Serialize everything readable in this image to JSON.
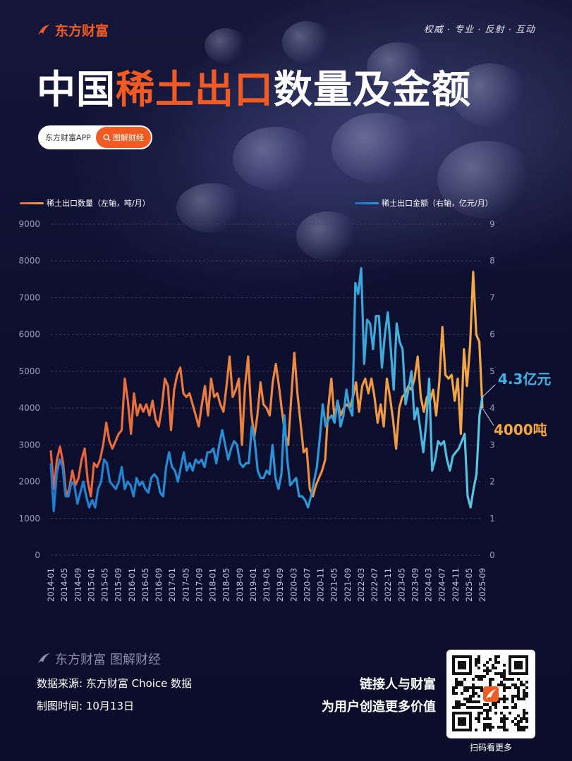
{
  "header": {
    "brand": "东方财富",
    "slogan": "权威 · 专业 · 反射 · 互动",
    "title_part1": "中国",
    "title_highlight": "稀土出口",
    "title_part2": "数量及金额",
    "app_label": "东方财富APP",
    "section_button": "图解财经"
  },
  "colors": {
    "accent": "#f15a22",
    "volume_line": "#f0a040",
    "amount_line": "#2a9ad8",
    "background": "#0c0e2c"
  },
  "chart_data": {
    "type": "line",
    "left_axis": {
      "label": "稀土出口数量（左轴，吨/月）",
      "ticks": [
        0,
        1000,
        2000,
        3000,
        4000,
        5000,
        6000,
        7000,
        8000,
        9000
      ],
      "ylim": [
        0,
        9000
      ]
    },
    "right_axis": {
      "label": "稀土出口金额（右轴，亿元/月）",
      "ticks": [
        0,
        1,
        2,
        3,
        4,
        5,
        6,
        7,
        8,
        9
      ],
      "ylim": [
        0,
        9
      ]
    },
    "x_tick_labels": [
      "2014-01",
      "2014-05",
      "2014-09",
      "2015-01",
      "2015-05",
      "2015-09",
      "2016-01",
      "2016-05",
      "2016-09",
      "2017-01",
      "2017-05",
      "2017-09",
      "2018-01",
      "2018-05",
      "2018-09",
      "2019-01",
      "2019-05",
      "2019-09",
      "2020-03",
      "2020-07",
      "2020-11",
      "2021-05",
      "2021-09",
      "2022-03",
      "2022-07",
      "2022-11",
      "2023-05",
      "2023-09",
      "2024-03",
      "2024-07",
      "2024-11",
      "2025-05",
      "2025-09"
    ],
    "grid": "horizontal dashed",
    "series": [
      {
        "name": "稀土出口数量（左轴，吨/月）",
        "axis": "left",
        "color": "#f0a040",
        "values": [
          2850,
          1800,
          2600,
          2950,
          2500,
          1600,
          1800,
          2300,
          1900,
          2100,
          2600,
          2900,
          2000,
          1600,
          2500,
          2400,
          2600,
          3000,
          3600,
          3100,
          2900,
          3100,
          3300,
          3400,
          4800,
          4200,
          3300,
          4400,
          3800,
          4100,
          3900,
          4100,
          3800,
          4200,
          3700,
          3500,
          4000,
          4800,
          4600,
          3400,
          4500,
          4900,
          5100,
          4400,
          4300,
          4400,
          4100,
          3800,
          3500,
          4100,
          4600,
          3800,
          4800,
          4300,
          4400,
          4100,
          3900,
          4600,
          5400,
          4300,
          4500,
          4800,
          3000,
          4600,
          5400,
          3900,
          3200,
          3800,
          4700,
          4100,
          4000,
          3800,
          4700,
          5200,
          4600,
          3900,
          3300,
          3000,
          4300,
          5500,
          4400,
          3600,
          2800,
          2900,
          1800,
          1600,
          1900,
          2100,
          2300,
          2600,
          4000,
          4800,
          3700,
          4200,
          3800,
          4000,
          4100,
          4000,
          4300,
          4700,
          3900,
          4600,
          4800,
          4400,
          4800,
          4300,
          3600,
          4100,
          3500,
          4800,
          4300,
          3700,
          2900,
          4000,
          4300,
          4400,
          4600,
          4500,
          4800,
          5400,
          4300,
          3900,
          4300,
          4200,
          4500,
          3800,
          4700,
          6200,
          4900,
          4800,
          4900,
          4200,
          4800,
          3300,
          5600,
          4600,
          5700,
          7700,
          6000,
          5800,
          4000
        ]
      },
      {
        "name": "稀土出口金额（右轴，亿元/月）",
        "axis": "right",
        "color": "#2a9ad8",
        "values": [
          2.5,
          1.2,
          2.2,
          2.6,
          2.4,
          1.6,
          1.6,
          2.0,
          1.9,
          1.4,
          1.7,
          2.0,
          1.6,
          1.3,
          1.5,
          1.3,
          1.8,
          2.0,
          2.6,
          2.5,
          2.0,
          1.9,
          1.8,
          2.0,
          2.4,
          1.8,
          2.0,
          1.9,
          1.6,
          2.1,
          1.9,
          2.0,
          1.8,
          1.7,
          2.1,
          2.2,
          2.1,
          1.7,
          1.6,
          2.4,
          2.8,
          2.4,
          2.3,
          2.0,
          2.4,
          2.8,
          2.3,
          2.5,
          2.3,
          2.6,
          2.5,
          2.6,
          2.4,
          2.8,
          2.8,
          2.9,
          2.5,
          3.0,
          3.4,
          3.0,
          2.6,
          2.9,
          3.1,
          3.0,
          2.5,
          2.4,
          2.5,
          2.5,
          3.5,
          3.1,
          2.3,
          2.1,
          2.1,
          2.3,
          2.2,
          3.0,
          2.1,
          1.8,
          2.2,
          3.8,
          2.6,
          1.9,
          2.0,
          2.1,
          1.6,
          1.6,
          1.5,
          1.3,
          1.6,
          2.0,
          2.4,
          3.2,
          4.1,
          3.5,
          3.7,
          3.8,
          3.6,
          4.2,
          3.5,
          3.8,
          4.5,
          4.0,
          3.8,
          7.4,
          7.1,
          7.8,
          5.2,
          6.4,
          6.3,
          5.6,
          6.5,
          6.5,
          5.1,
          6.0,
          6.6,
          5.6,
          4.5,
          6.3,
          5.8,
          5.6,
          4.1,
          4.5,
          5.0,
          3.7,
          4.0,
          3.4,
          2.8,
          3.6,
          4.8,
          2.3,
          2.6,
          3.1,
          3.0,
          3.1,
          2.6,
          2.3,
          2.7,
          2.8,
          2.9,
          3.1,
          3.3,
          1.6,
          1.3,
          1.8,
          2.2,
          3.8,
          4.3
        ]
      }
    ],
    "annotations": {
      "amount_latest": "4.3亿元",
      "volume_latest": "4000吨"
    }
  },
  "footer": {
    "brand": "东方财富",
    "column": "图解财经",
    "source": "数据来源: 东方财富 Choice 数据",
    "date": "制图时间: 10月13日",
    "tagline1": "链接人与财富",
    "tagline2": "为用户创造更多价值",
    "qr_caption": "扫码看更多"
  }
}
